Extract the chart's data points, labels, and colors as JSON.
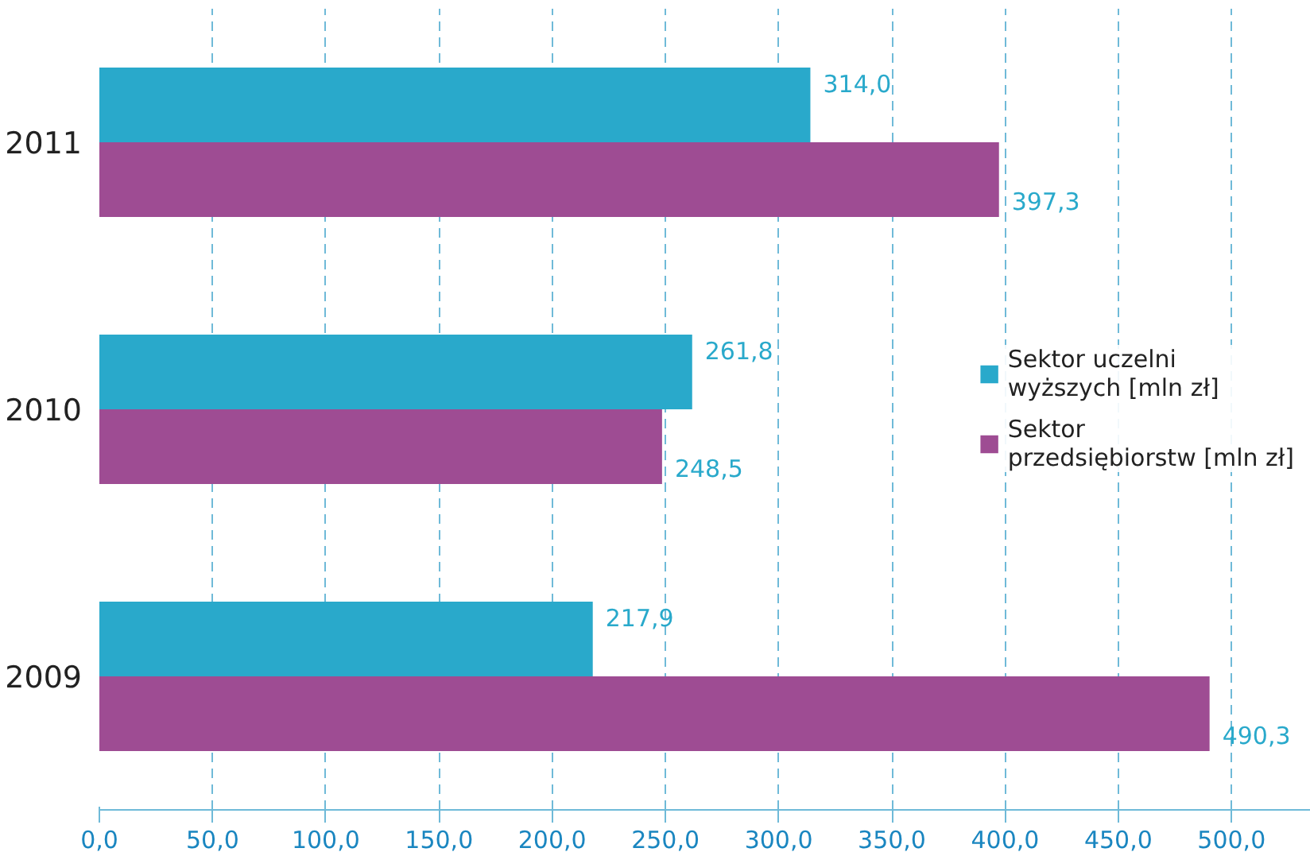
{
  "chart_data": {
    "type": "bar",
    "orientation": "horizontal",
    "categories": [
      "2011",
      "2010",
      "2009"
    ],
    "series": [
      {
        "name": "Sektor uczelni wyższych [mln zł]",
        "color": "#29a9cb",
        "values": [
          314.0,
          261.8,
          217.9
        ],
        "value_labels": [
          "314,0",
          "261,8",
          "217,9"
        ]
      },
      {
        "name": "Sektor przedsiębiorstw [mln zł]",
        "color": "#9e4c93",
        "values": [
          397.3,
          248.5,
          490.3
        ],
        "value_labels": [
          "397,3",
          "248,5",
          "490,3"
        ]
      }
    ],
    "xlim": [
      0,
      535
    ],
    "xticks": [
      {
        "value": 0,
        "label": "0,0"
      },
      {
        "value": 50,
        "label": "50,0"
      },
      {
        "value": 100,
        "label": "100,0"
      },
      {
        "value": 150,
        "label": "150,0"
      },
      {
        "value": 200,
        "label": "200,0"
      },
      {
        "value": 250,
        "label": "250,0"
      },
      {
        "value": 300,
        "label": "300,0"
      },
      {
        "value": 350,
        "label": "350,0"
      },
      {
        "value": 400,
        "label": "400,0"
      },
      {
        "value": 450,
        "label": "450,0"
      },
      {
        "value": 500,
        "label": "500,0"
      }
    ],
    "grid": "x",
    "legend": "right"
  }
}
